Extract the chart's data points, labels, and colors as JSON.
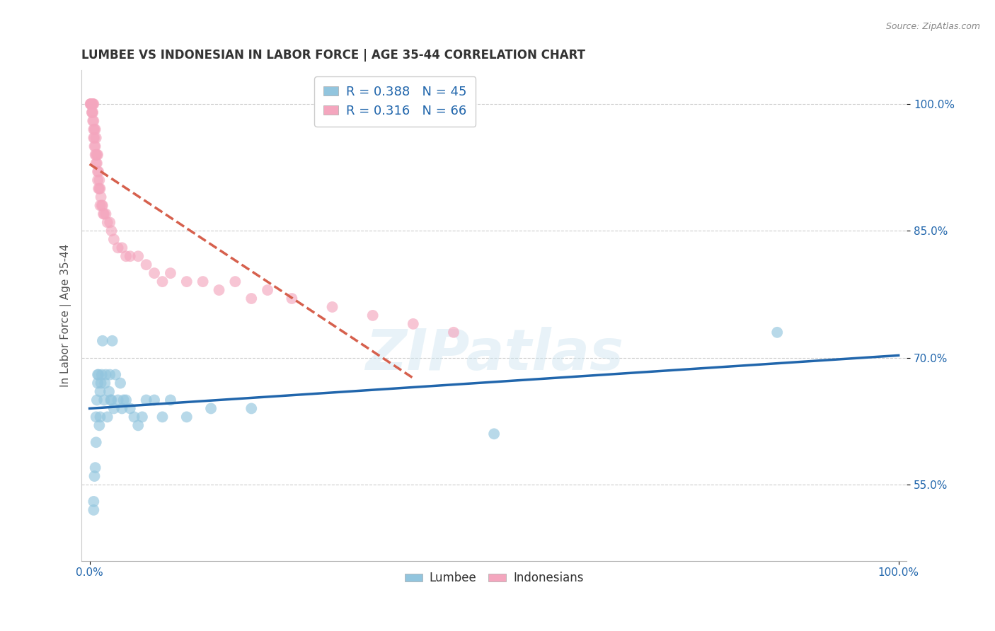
{
  "title": "LUMBEE VS INDONESIAN IN LABOR FORCE | AGE 35-44 CORRELATION CHART",
  "source_text": "Source: ZipAtlas.com",
  "ylabel": "In Labor Force | Age 35-44",
  "xlim": [
    -0.01,
    1.01
  ],
  "ylim": [
    0.46,
    1.04
  ],
  "ytick_vals": [
    0.55,
    0.7,
    0.85,
    1.0
  ],
  "ytick_labels": [
    "55.0%",
    "70.0%",
    "85.0%",
    "100.0%"
  ],
  "xtick_vals": [
    0.0,
    1.0
  ],
  "xtick_labels": [
    "0.0%",
    "100.0%"
  ],
  "watermark": "ZIPatlas",
  "lumbee_R": 0.388,
  "lumbee_N": 45,
  "indonesian_R": 0.316,
  "indonesian_N": 66,
  "lumbee_color": "#92c5de",
  "indonesian_color": "#f4a6be",
  "lumbee_line_color": "#2166ac",
  "indonesian_line_color": "#d6604d",
  "lumbee_x": [
    0.005,
    0.005,
    0.006,
    0.007,
    0.008,
    0.008,
    0.009,
    0.01,
    0.01,
    0.011,
    0.012,
    0.013,
    0.013,
    0.014,
    0.015,
    0.016,
    0.018,
    0.019,
    0.02,
    0.022,
    0.024,
    0.025,
    0.026,
    0.027,
    0.028,
    0.03,
    0.032,
    0.035,
    0.038,
    0.04,
    0.042,
    0.045,
    0.05,
    0.055,
    0.06,
    0.065,
    0.07,
    0.08,
    0.09,
    0.1,
    0.12,
    0.15,
    0.2,
    0.5,
    0.85
  ],
  "lumbee_y": [
    0.52,
    0.53,
    0.56,
    0.57,
    0.6,
    0.63,
    0.65,
    0.67,
    0.68,
    0.68,
    0.62,
    0.63,
    0.66,
    0.67,
    0.68,
    0.72,
    0.65,
    0.67,
    0.68,
    0.63,
    0.66,
    0.68,
    0.65,
    0.65,
    0.72,
    0.64,
    0.68,
    0.65,
    0.67,
    0.64,
    0.65,
    0.65,
    0.64,
    0.63,
    0.62,
    0.63,
    0.65,
    0.65,
    0.63,
    0.65,
    0.63,
    0.64,
    0.64,
    0.61,
    0.73
  ],
  "indonesian_x": [
    0.001,
    0.001,
    0.002,
    0.002,
    0.002,
    0.003,
    0.003,
    0.003,
    0.004,
    0.004,
    0.004,
    0.004,
    0.005,
    0.005,
    0.005,
    0.005,
    0.006,
    0.006,
    0.006,
    0.007,
    0.007,
    0.007,
    0.008,
    0.008,
    0.008,
    0.009,
    0.009,
    0.01,
    0.01,
    0.01,
    0.011,
    0.011,
    0.012,
    0.012,
    0.013,
    0.013,
    0.014,
    0.015,
    0.016,
    0.017,
    0.018,
    0.02,
    0.022,
    0.025,
    0.027,
    0.03,
    0.035,
    0.04,
    0.045,
    0.05,
    0.06,
    0.07,
    0.08,
    0.09,
    0.1,
    0.12,
    0.14,
    0.16,
    0.18,
    0.2,
    0.22,
    0.25,
    0.3,
    0.35,
    0.4,
    0.45
  ],
  "indonesian_y": [
    1.0,
    1.0,
    1.0,
    1.0,
    1.0,
    0.99,
    0.99,
    1.0,
    0.98,
    0.99,
    1.0,
    1.0,
    0.96,
    0.97,
    0.98,
    1.0,
    0.95,
    0.96,
    0.97,
    0.94,
    0.95,
    0.97,
    0.93,
    0.94,
    0.96,
    0.93,
    0.94,
    0.91,
    0.92,
    0.94,
    0.9,
    0.92,
    0.9,
    0.91,
    0.88,
    0.9,
    0.89,
    0.88,
    0.88,
    0.87,
    0.87,
    0.87,
    0.86,
    0.86,
    0.85,
    0.84,
    0.83,
    0.83,
    0.82,
    0.82,
    0.82,
    0.81,
    0.8,
    0.79,
    0.8,
    0.79,
    0.79,
    0.78,
    0.79,
    0.77,
    0.78,
    0.77,
    0.76,
    0.75,
    0.74,
    0.73
  ],
  "background_color": "#ffffff",
  "grid_color": "#cccccc"
}
